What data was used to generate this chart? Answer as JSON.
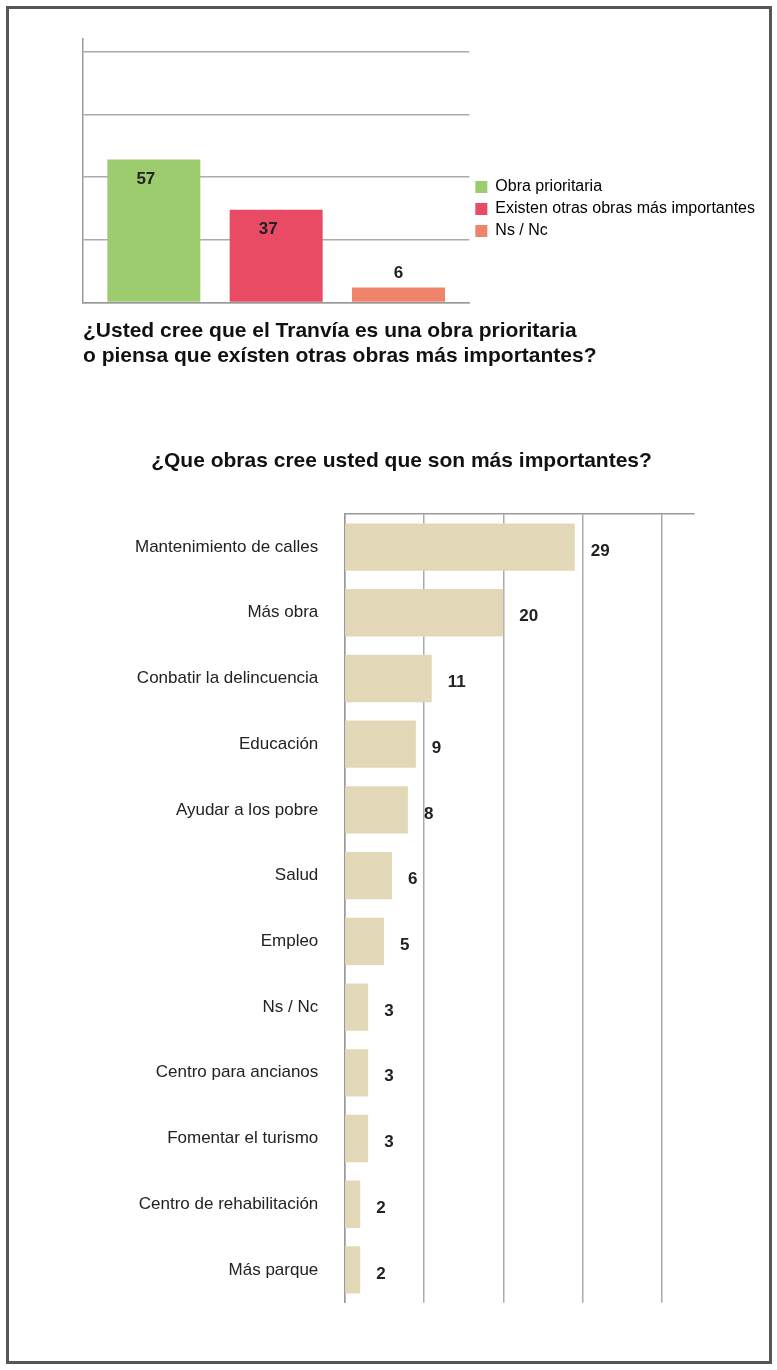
{
  "chart_data": [
    {
      "type": "bar",
      "title": "¿Usted cree que el Tranvía es una obra prioritaria\no piensa que exísten otras obras más importantes?",
      "categories": [
        null
      ],
      "series": [
        {
          "name": "Obra prioritaria",
          "color": "#9ccc6e",
          "values": [
            57
          ]
        },
        {
          "name": "Existen otras obras más importantes",
          "color": "#e94a64",
          "values": [
            37
          ]
        },
        {
          "name": "Ns / Nc",
          "color": "#f0846a",
          "values": [
            6
          ]
        }
      ],
      "ylim": [
        0,
        105
      ],
      "yticks": [
        {
          "value": 0,
          "label": null
        },
        {
          "value": 25,
          "label": null
        },
        {
          "value": 50,
          "label": null
        },
        {
          "value": 75,
          "label": null
        },
        {
          "value": 100,
          "label": null
        }
      ],
      "grid": "y",
      "legend": "right",
      "tick_labels": false,
      "data_labels": true
    },
    {
      "type": "bar",
      "orientation": "horizontal",
      "title": "¿Que obras cree usted que son más importantes?",
      "categories": [
        "Mantenimiento de calles",
        "Más obra",
        "Conbatir la delincuencia",
        "Educación",
        "Ayudar a los pobre",
        "Salud",
        "Empleo",
        "Ns / Nc",
        "Centro para ancianos",
        "Fomentar el turismo",
        "Centro de rehabilitación",
        "Más parque"
      ],
      "values": [
        29,
        20,
        11,
        9,
        8,
        6,
        5,
        3,
        3,
        3,
        2,
        2
      ],
      "color": "#e2d8b8",
      "xlim": [
        0,
        44
      ],
      "xticks": [
        {
          "value": 0,
          "label": null
        },
        {
          "value": 10,
          "label": null
        },
        {
          "value": 20,
          "label": null
        },
        {
          "value": 30,
          "label": null
        },
        {
          "value": 40,
          "label": null
        }
      ],
      "grid": "x",
      "tick_labels": "y",
      "data_labels": true
    }
  ]
}
